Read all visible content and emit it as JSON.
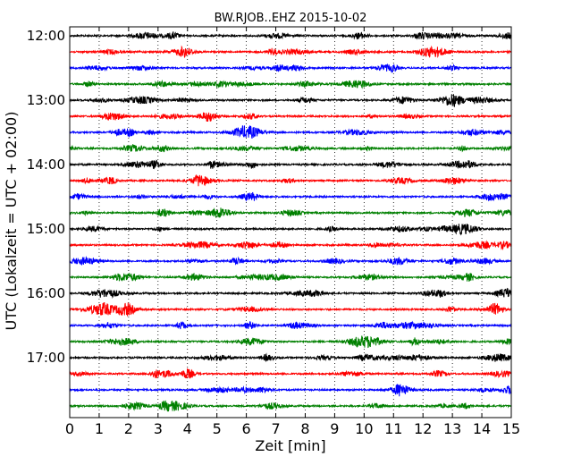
{
  "chart_data": {
    "type": "line",
    "title": "BW.RJOB..EHZ 2015-10-02",
    "xlabel": "Zeit  [min]",
    "ylabel": "UTC (Lokalzeit = UTC + 02:00)",
    "xlim": [
      0,
      15
    ],
    "x_ticks": [
      "0",
      "1",
      "2",
      "3",
      "4",
      "5",
      "6",
      "7",
      "8",
      "9",
      "10",
      "11",
      "12",
      "13",
      "14",
      "15"
    ],
    "y_tick_labels": [
      "12:00",
      "13:00",
      "14:00",
      "15:00",
      "16:00",
      "17:00"
    ],
    "grid": "vertical dotted",
    "trace_colors": [
      "#000000",
      "#ff0000",
      "#0000ff",
      "#008000"
    ],
    "traces": [
      {
        "start": "12:00",
        "color": "#000000"
      },
      {
        "start": "12:15",
        "color": "#ff0000"
      },
      {
        "start": "12:30",
        "color": "#0000ff"
      },
      {
        "start": "12:45",
        "color": "#008000"
      },
      {
        "start": "13:00",
        "color": "#000000"
      },
      {
        "start": "13:15",
        "color": "#ff0000"
      },
      {
        "start": "13:30",
        "color": "#0000ff"
      },
      {
        "start": "13:45",
        "color": "#008000"
      },
      {
        "start": "14:00",
        "color": "#000000"
      },
      {
        "start": "14:15",
        "color": "#ff0000"
      },
      {
        "start": "14:30",
        "color": "#0000ff"
      },
      {
        "start": "14:45",
        "color": "#008000"
      },
      {
        "start": "15:00",
        "color": "#000000"
      },
      {
        "start": "15:15",
        "color": "#ff0000"
      },
      {
        "start": "15:30",
        "color": "#0000ff"
      },
      {
        "start": "15:45",
        "color": "#008000"
      },
      {
        "start": "16:00",
        "color": "#000000"
      },
      {
        "start": "16:15",
        "color": "#ff0000"
      },
      {
        "start": "16:30",
        "color": "#0000ff"
      },
      {
        "start": "16:45",
        "color": "#008000"
      },
      {
        "start": "17:00",
        "color": "#000000"
      },
      {
        "start": "17:15",
        "color": "#ff0000"
      },
      {
        "start": "17:30",
        "color": "#0000ff"
      },
      {
        "start": "17:45",
        "color": "#008000"
      }
    ]
  }
}
